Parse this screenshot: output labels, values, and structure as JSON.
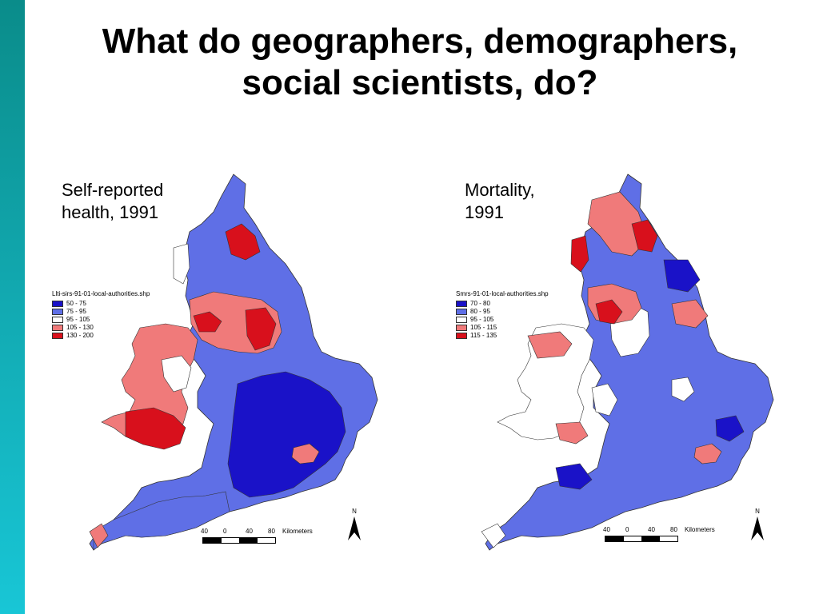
{
  "slide": {
    "title_line1": "What do geographers, demographers,",
    "title_line2": "social scientists, do?"
  },
  "maps": [
    {
      "label_line1": "Self-reported",
      "label_line2": "health, 1991",
      "legend_title": "Llti-sirs-91-01-local-authorities.shp",
      "classes": [
        {
          "label": "50 - 75",
          "color": "#1a12c8"
        },
        {
          "label": "75 - 95",
          "color": "#5f6fe6"
        },
        {
          "label": "95 - 105",
          "color": "#ffffff"
        },
        {
          "label": "105 - 130",
          "color": "#f07a7a"
        },
        {
          "label": "130 - 200",
          "color": "#d8101c"
        }
      ],
      "scale": {
        "ticks": [
          "40",
          "0",
          "40",
          "80"
        ],
        "unit": "Kilometers"
      },
      "north_label": "N"
    },
    {
      "label_line1": "Mortality,",
      "label_line2": "1991",
      "legend_title": "Smrs-91-01-local-authorities.shp",
      "classes": [
        {
          "label": "70 - 80",
          "color": "#1a12c8"
        },
        {
          "label": "80 - 95",
          "color": "#5f6fe6"
        },
        {
          "label": "95 - 105",
          "color": "#ffffff"
        },
        {
          "label": "105 - 115",
          "color": "#f07a7a"
        },
        {
          "label": "115 - 135",
          "color": "#d8101c"
        }
      ],
      "scale": {
        "ticks": [
          "40",
          "0",
          "40",
          "80"
        ],
        "unit": "Kilometers"
      },
      "north_label": "N"
    }
  ],
  "colors": {
    "side_bar_top": "#0a8c8a",
    "side_bar_bottom": "#18c6d6",
    "boundary": "#333333"
  }
}
